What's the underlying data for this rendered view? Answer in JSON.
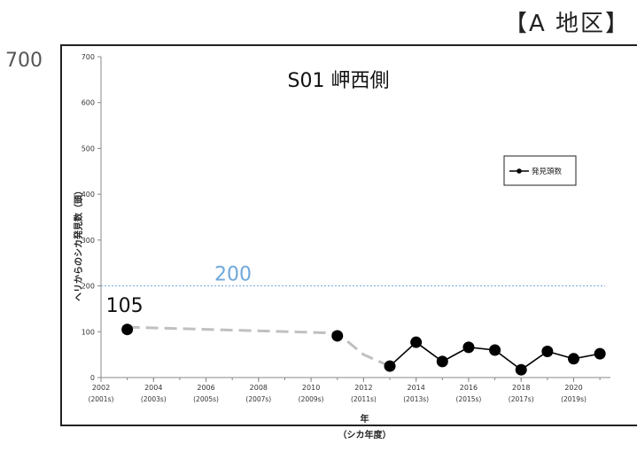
{
  "region_label": "【A 地区】",
  "outer_ymax_label": "700",
  "chart_data": {
    "type": "line",
    "title": "S01 岬西側",
    "ylabel": "ヘリからのシカ発見数（頭）",
    "xlabel": "年",
    "xlabel_sub": "（シカ年度）",
    "ylim": [
      0,
      700
    ],
    "xlim": [
      2002,
      2021.4
    ],
    "yticks": [
      0,
      100,
      200,
      300,
      400,
      500,
      600,
      700
    ],
    "xticks": [
      {
        "year": 2002,
        "label": "2002",
        "sub": "(2001s)"
      },
      {
        "year": 2004,
        "label": "2004",
        "sub": "(2003s)"
      },
      {
        "year": 2006,
        "label": "2006",
        "sub": "(2005s)"
      },
      {
        "year": 2008,
        "label": "2008",
        "sub": "(2007s)"
      },
      {
        "year": 2010,
        "label": "2010",
        "sub": "(2009s)"
      },
      {
        "year": 2012,
        "label": "2012",
        "sub": "(2011s)"
      },
      {
        "year": 2014,
        "label": "2014",
        "sub": "(2013s)"
      },
      {
        "year": 2016,
        "label": "2016",
        "sub": "(2015s)"
      },
      {
        "year": 2018,
        "label": "2018",
        "sub": "(2017s)"
      },
      {
        "year": 2020,
        "label": "2020",
        "sub": "(2019s)"
      }
    ],
    "series": [
      {
        "name": "発見頭数",
        "color": "#000000",
        "x": [
          2003,
          2011,
          2013,
          2014,
          2015,
          2016,
          2017,
          2018,
          2019,
          2020,
          2021
        ],
        "y": [
          105,
          91,
          25,
          77,
          35,
          66,
          60,
          17,
          57,
          41,
          52
        ]
      }
    ],
    "gap_line": {
      "color": "#c0c0c0",
      "points": [
        [
          2003,
          110
        ],
        [
          2011,
          97
        ],
        [
          2012,
          50
        ],
        [
          2013,
          25
        ]
      ]
    },
    "reference_line": {
      "value": 200,
      "label": "200",
      "color": "#6fa8dc"
    },
    "annotation": {
      "x": 2003,
      "text": "105"
    },
    "legend_position": "top-right",
    "grid": false
  }
}
